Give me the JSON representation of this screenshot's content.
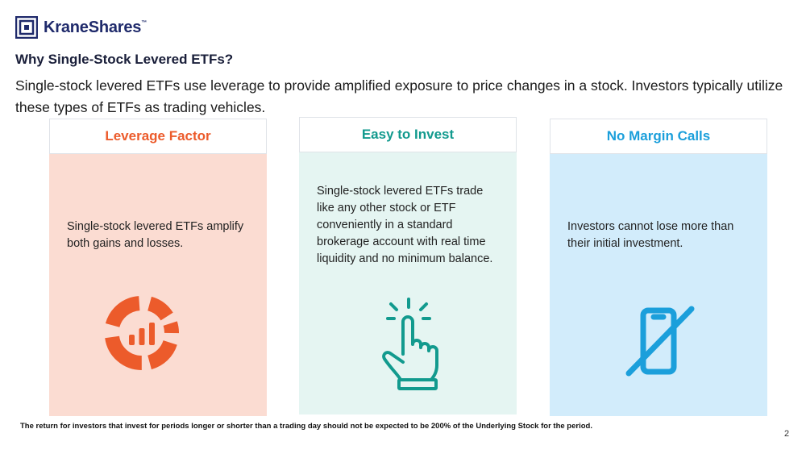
{
  "brand": {
    "logo_text": "KraneShares",
    "trademark": "™",
    "color": "#1f2a6b"
  },
  "heading": "Why Single-Stock Levered ETFs?",
  "intro": "Single-stock levered ETFs use leverage to provide amplified exposure to price changes in a stock. Investors typically utilize these types of ETFs as trading vehicles.",
  "cards": [
    {
      "title": "Leverage Factor",
      "text": "Single-stock levered ETFs amplify both gains and losses.",
      "icon": "donut-chart-icon",
      "accent": "#ec5b2b",
      "background": "#fbdcd2"
    },
    {
      "title": "Easy to Invest",
      "text": "Single-stock levered ETFs trade like any other stock or ETF conveniently in a standard brokerage account with real time liquidity and no minimum balance.",
      "icon": "tap-hand-icon",
      "accent": "#129a8e",
      "background": "#e5f5f2"
    },
    {
      "title": "No Margin Calls",
      "text": "Investors cannot lose more than their initial investment.",
      "icon": "no-phone-icon",
      "accent": "#1b9fdb",
      "background": "#d2ecfb"
    }
  ],
  "footnote": "The return for investors that invest for periods longer or shorter than a trading day should not be expected to be 200% of the Underlying Stock for the period.",
  "page_number": "2"
}
